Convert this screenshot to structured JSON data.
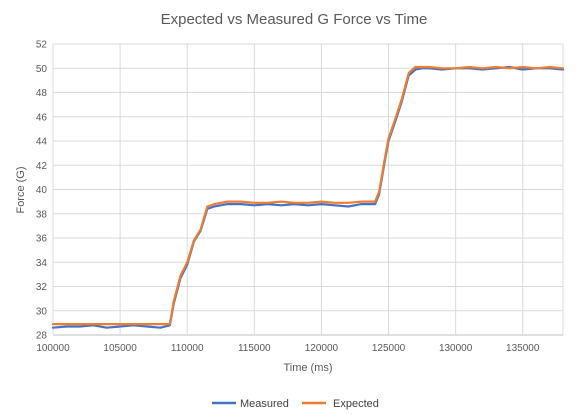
{
  "chart_data": {
    "type": "line",
    "title": "Expected vs Measured G Force vs Time",
    "xlabel": "Time (ms)",
    "ylabel": "Force (G)",
    "xlim": [
      100000,
      138000
    ],
    "ylim": [
      28,
      52
    ],
    "xticks": [
      100000,
      105000,
      110000,
      115000,
      120000,
      125000,
      130000,
      135000
    ],
    "yticks": [
      28,
      30,
      32,
      34,
      36,
      38,
      40,
      42,
      44,
      46,
      48,
      50,
      52
    ],
    "grid": true,
    "legend_position": "bottom",
    "series": [
      {
        "name": "Measured",
        "color": "#4472C4",
        "x": [
          100000,
          101000,
          102000,
          103000,
          104000,
          105000,
          106000,
          107000,
          108000,
          108700,
          109000,
          109500,
          110000,
          110500,
          111000,
          111500,
          112000,
          112500,
          113000,
          114000,
          115000,
          116000,
          117000,
          118000,
          119000,
          120000,
          121000,
          122000,
          123000,
          124000,
          124300,
          124700,
          125000,
          125500,
          126000,
          126500,
          127000,
          127500,
          128000,
          129000,
          130000,
          131000,
          132000,
          133000,
          134000,
          135000,
          136000,
          137000,
          138000
        ],
        "y": [
          28.6,
          28.7,
          28.7,
          28.8,
          28.6,
          28.7,
          28.8,
          28.7,
          28.6,
          28.8,
          30.6,
          32.7,
          33.8,
          35.7,
          36.6,
          38.4,
          38.6,
          38.7,
          38.8,
          38.8,
          38.7,
          38.8,
          38.7,
          38.8,
          38.7,
          38.8,
          38.7,
          38.6,
          38.8,
          38.8,
          39.6,
          42.2,
          44.0,
          45.6,
          47.3,
          49.4,
          49.9,
          50.0,
          50.0,
          49.9,
          50.0,
          50.0,
          49.9,
          50.0,
          50.1,
          49.9,
          50.0,
          50.0,
          49.9
        ]
      },
      {
        "name": "Expected",
        "color": "#ED7D31",
        "x": [
          100000,
          101000,
          102000,
          103000,
          104000,
          105000,
          106000,
          107000,
          108000,
          108700,
          109000,
          109500,
          110000,
          110500,
          111000,
          111500,
          112000,
          112500,
          113000,
          114000,
          115000,
          116000,
          117000,
          118000,
          119000,
          120000,
          121000,
          122000,
          123000,
          124000,
          124300,
          124700,
          125000,
          125500,
          126000,
          126500,
          127000,
          127500,
          128000,
          129000,
          130000,
          131000,
          132000,
          133000,
          134000,
          135000,
          136000,
          137000,
          138000
        ],
        "y": [
          28.9,
          28.9,
          28.9,
          28.9,
          28.9,
          28.9,
          28.9,
          28.9,
          28.9,
          28.9,
          30.8,
          32.9,
          34.0,
          35.8,
          36.7,
          38.6,
          38.8,
          38.9,
          39.0,
          39.0,
          38.9,
          38.9,
          39.0,
          38.9,
          38.9,
          39.0,
          38.9,
          38.9,
          39.0,
          39.0,
          39.8,
          42.4,
          44.2,
          45.8,
          47.5,
          49.6,
          50.1,
          50.1,
          50.1,
          50.0,
          50.0,
          50.1,
          50.0,
          50.1,
          50.0,
          50.1,
          50.0,
          50.1,
          50.0
        ]
      }
    ]
  }
}
